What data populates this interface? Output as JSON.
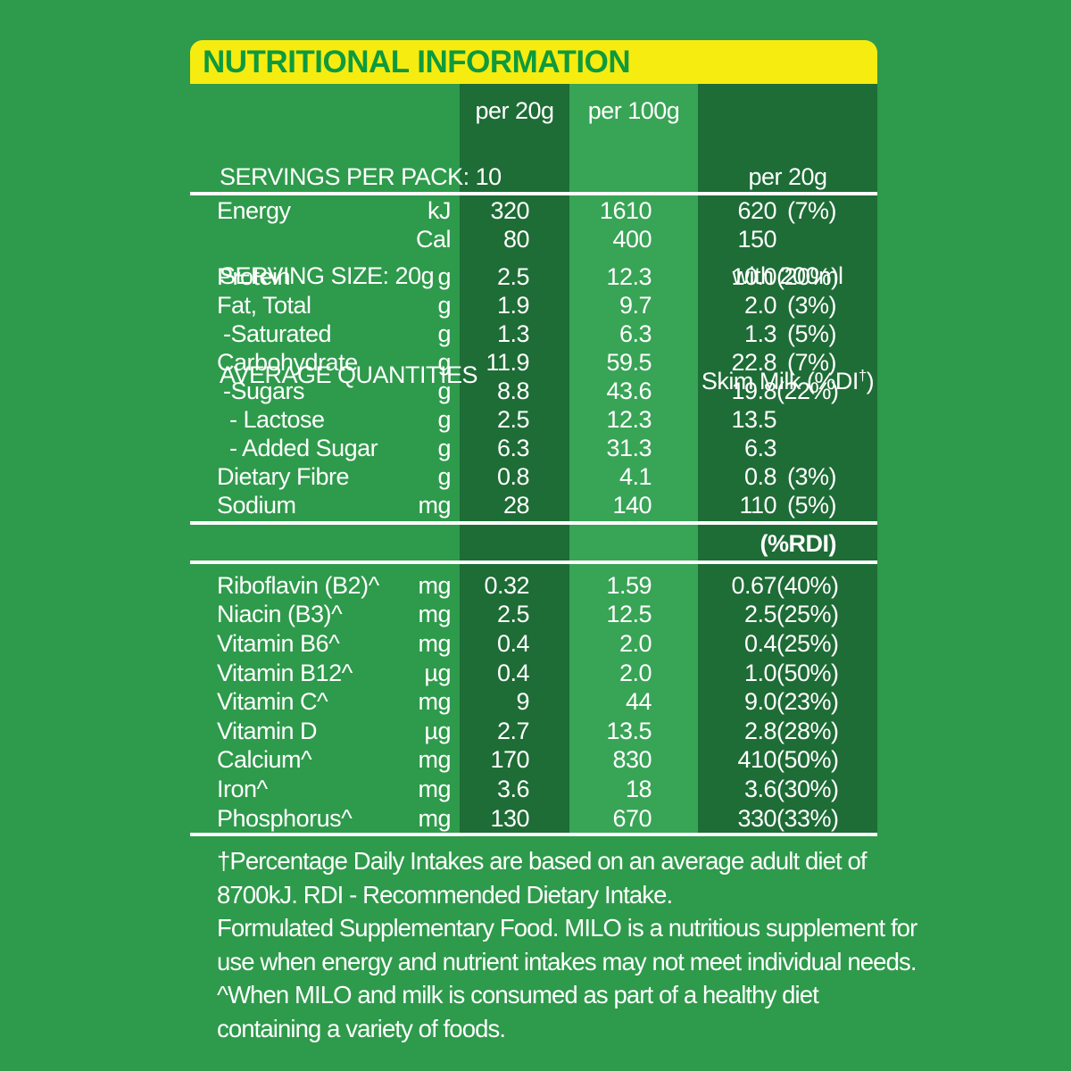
{
  "colors": {
    "background": "#2E9A4B",
    "column_dark": "#1E6C36",
    "column_light": "#38A456",
    "header_yellow": "#F7EC10",
    "title_green": "#0E9A3E",
    "text": "#FFFFFF"
  },
  "title": "NUTRITIONAL INFORMATION",
  "header": {
    "servings_line": "SERVINGS PER PACK: 10",
    "serving_size_line": "SERVING SIZE: 20g",
    "avg_qty_line": "AVERAGE QUANTITIES",
    "col_per20": "per 20g",
    "col_per100": "per 100g",
    "col_milk_line1": "per 20g",
    "col_milk_line2": "with 200ml",
    "col_milk_line3_pre": "Skim Milk (%DI",
    "col_milk_line3_sup": "†",
    "col_milk_line3_post": ")"
  },
  "rdi_label": "(%RDI)",
  "main_rows": [
    {
      "label": "Energy",
      "unit": "kJ",
      "per20": "320",
      "per100": "1610",
      "milk": "620",
      "di": "(7%)",
      "gap_after": false
    },
    {
      "label": "",
      "unit": "Cal",
      "per20": "80",
      "per100": "400",
      "milk": "150",
      "di": "",
      "gap_after": true
    },
    {
      "label": "Protein",
      "unit": "g",
      "per20": "2.5",
      "per100": "12.3",
      "milk": "10.0",
      "di": "(20%)",
      "gap_after": false
    },
    {
      "label": "Fat, Total",
      "unit": "g",
      "per20": "1.9",
      "per100": "9.7",
      "milk": "2.0",
      "di": "(3%)",
      "gap_after": false
    },
    {
      "label": " -Saturated",
      "unit": "g",
      "per20": "1.3",
      "per100": "6.3",
      "milk": "1.3",
      "di": "(5%)",
      "gap_after": false
    },
    {
      "label": "Carbohydrate",
      "unit": "g",
      "per20": "11.9",
      "per100": "59.5",
      "milk": "22.8",
      "di": "(7%)",
      "gap_after": false
    },
    {
      "label": " -Sugars",
      "unit": "g",
      "per20": "8.8",
      "per100": "43.6",
      "milk": "19.8",
      "di": "(22%)",
      "gap_after": false
    },
    {
      "label": "  - Lactose",
      "unit": "g",
      "per20": "2.5",
      "per100": "12.3",
      "milk": "13.5",
      "di": "",
      "gap_after": false
    },
    {
      "label": "  - Added Sugar",
      "unit": "g",
      "per20": "6.3",
      "per100": "31.3",
      "milk": "6.3",
      "di": "",
      "gap_after": false
    },
    {
      "label": "Dietary Fibre",
      "unit": "g",
      "per20": "0.8",
      "per100": "4.1",
      "milk": "0.8",
      "di": "(3%)",
      "gap_after": false
    },
    {
      "label": "Sodium",
      "unit": "mg",
      "per20": "28",
      "per100": "140",
      "milk": "110",
      "di": "(5%)",
      "gap_after": false
    }
  ],
  "vitamin_rows": [
    {
      "label": "Riboflavin (B2)^",
      "unit": "mg",
      "per20": "0.32",
      "per100": "1.59",
      "milk": "0.67",
      "di": "(40%)"
    },
    {
      "label": "Niacin (B3)^",
      "unit": "mg",
      "per20": "2.5",
      "per100": "12.5",
      "milk": "2.5",
      "di": "(25%)"
    },
    {
      "label": "Vitamin B6^",
      "unit": "mg",
      "per20": "0.4",
      "per100": "2.0",
      "milk": "0.4",
      "di": "(25%)"
    },
    {
      "label": "Vitamin B12^",
      "unit": "µg",
      "per20": "0.4",
      "per100": "2.0",
      "milk": "1.0",
      "di": "(50%)"
    },
    {
      "label": "Vitamin C^",
      "unit": "mg",
      "per20": "9",
      "per100": "44",
      "milk": "9.0",
      "di": "(23%)"
    },
    {
      "label": "Vitamin D",
      "unit": "µg",
      "per20": "2.7",
      "per100": "13.5",
      "milk": "2.8",
      "di": "(28%)"
    },
    {
      "label": "Calcium^",
      "unit": "mg",
      "per20": "170",
      "per100": "830",
      "milk": "410",
      "di": "(50%)"
    },
    {
      "label": "Iron^",
      "unit": "mg",
      "per20": "3.6",
      "per100": "18",
      "milk": "3.6",
      "di": "(30%)"
    },
    {
      "label": "Phosphorus^",
      "unit": "mg",
      "per20": "130",
      "per100": "670",
      "milk": "330",
      "di": "(33%)"
    }
  ],
  "footnotes": [
    "†Percentage Daily Intakes are based on an average adult diet of",
    "8700kJ. RDI - Recommended Dietary Intake.",
    "Formulated Supplementary Food. MILO is a nutritious supplement for",
    "use when energy and nutrient intakes may not meet individual needs.",
    "^When MILO and milk is consumed as part of a healthy diet",
    "containing a variety of foods."
  ]
}
